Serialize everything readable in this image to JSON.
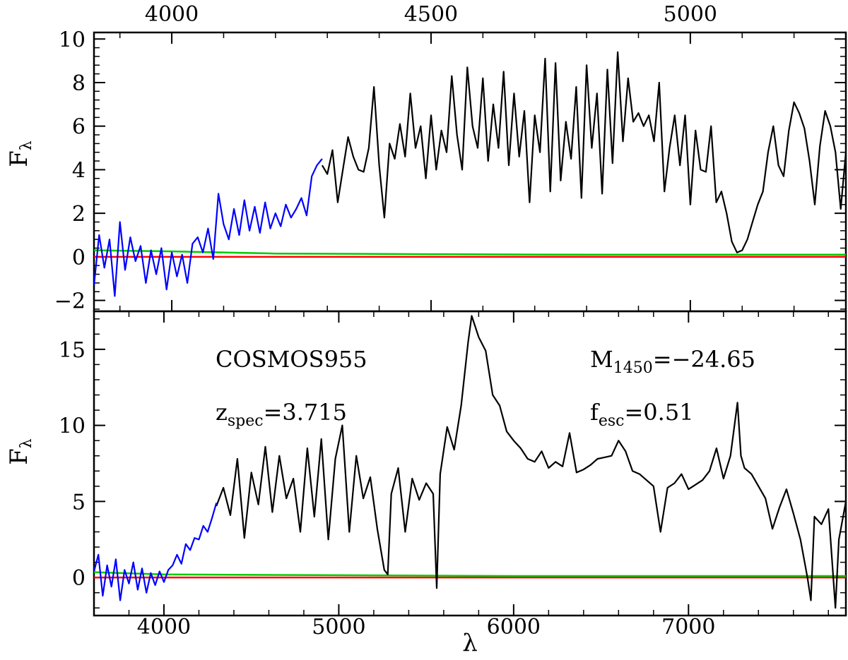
{
  "chart_data": [
    {
      "type": "line",
      "panel": "top",
      "ylabel": "F",
      "ylabel_sub": "λ",
      "xlim": [
        3850,
        5300
      ],
      "ylim": [
        -2.5,
        10.3
      ],
      "x_top_ticks": [
        4000,
        4500,
        5000
      ],
      "y_ticks": [
        -2,
        0,
        2,
        4,
        6,
        8,
        10
      ],
      "y_tick_labels": [
        "−2",
        "0",
        "2",
        "4",
        "6",
        "8",
        "10"
      ],
      "colors": {
        "observed_blueward": "#0000ff",
        "observed": "#000000",
        "error": "#00cc00",
        "zero": "#ff0000"
      },
      "series": [
        {
          "color": "blue",
          "x": [
            3850,
            3860,
            3870,
            3880,
            3890,
            3900,
            3910,
            3920,
            3930,
            3940,
            3950,
            3960,
            3970,
            3980,
            3990,
            4000,
            4010,
            4020,
            4030,
            4040,
            4050,
            4060,
            4070,
            4080,
            4090,
            4100,
            4110,
            4120,
            4130,
            4140,
            4150,
            4160,
            4170,
            4180,
            4190,
            4200,
            4210,
            4220,
            4230,
            4240,
            4250,
            4260,
            4270,
            4280,
            4290
          ],
          "y": [
            -1.3,
            1.0,
            -0.5,
            0.8,
            -1.8,
            1.6,
            -0.6,
            0.9,
            -0.2,
            0.5,
            -1.2,
            0.3,
            -0.8,
            0.4,
            -1.5,
            0.2,
            -0.9,
            0.1,
            -1.2,
            0.6,
            0.9,
            0.2,
            1.3,
            -0.1,
            2.9,
            1.5,
            0.8,
            2.2,
            1.0,
            2.6,
            1.2,
            2.3,
            1.1,
            2.5,
            1.3,
            2.0,
            1.4,
            2.4,
            1.8,
            2.2,
            2.7,
            1.9,
            3.7,
            4.2,
            4.5
          ]
        },
        {
          "color": "black",
          "x": [
            4290,
            4300,
            4310,
            4320,
            4330,
            4340,
            4350,
            4360,
            4370,
            4380,
            4390,
            4400,
            4410,
            4420,
            4430,
            4440,
            4450,
            4460,
            4470,
            4480,
            4490,
            4500,
            4510,
            4520,
            4530,
            4540,
            4550,
            4560,
            4570,
            4580,
            4590,
            4600,
            4610,
            4620,
            4630,
            4640,
            4650,
            4660,
            4670,
            4680,
            4690,
            4700,
            4710,
            4720,
            4730,
            4740,
            4750,
            4760,
            4770,
            4780,
            4790,
            4800,
            4810,
            4820,
            4830,
            4840,
            4850,
            4860,
            4870,
            4880,
            4890,
            4900,
            4910,
            4920,
            4930,
            4940,
            4950,
            4960,
            4970,
            4980,
            4990,
            5000,
            5010,
            5020,
            5030,
            5040,
            5050,
            5060,
            5070,
            5080,
            5090,
            5100,
            5110,
            5120,
            5130,
            5140,
            5150,
            5160,
            5170,
            5180,
            5190,
            5200,
            5210,
            5220,
            5230,
            5240,
            5250,
            5260,
            5270,
            5280,
            5290,
            5300
          ],
          "y": [
            4.2,
            3.8,
            4.9,
            2.5,
            4.0,
            5.5,
            4.6,
            4.0,
            3.9,
            5.0,
            7.8,
            4.2,
            1.8,
            5.2,
            4.5,
            6.1,
            4.6,
            7.5,
            5.0,
            6.0,
            3.6,
            6.5,
            4.0,
            5.8,
            4.8,
            8.3,
            5.6,
            4.0,
            8.7,
            6.0,
            5.0,
            8.2,
            4.4,
            7.0,
            5.0,
            8.5,
            4.2,
            7.5,
            4.6,
            6.7,
            2.5,
            6.5,
            4.8,
            9.1,
            3.0,
            8.9,
            3.5,
            6.2,
            4.5,
            7.8,
            2.7,
            8.8,
            5.0,
            7.5,
            2.9,
            8.6,
            4.3,
            9.4,
            5.3,
            8.2,
            6.2,
            6.6,
            6.0,
            6.5,
            5.3,
            8.0,
            3.0,
            5.0,
            6.5,
            4.2,
            6.5,
            2.4,
            5.8,
            4.0,
            3.9,
            6.0,
            2.5,
            3.0,
            2.0,
            0.7,
            0.2,
            0.3,
            0.8,
            1.6,
            2.4,
            3.0,
            4.8,
            6.0,
            4.2,
            3.7,
            5.8,
            7.1,
            6.6,
            5.9,
            4.4,
            2.4,
            5.1,
            6.7,
            6.0,
            4.8,
            2.2,
            4.8
          ]
        },
        {
          "color": "green",
          "x": [
            3850,
            4000,
            4200,
            4500,
            4800,
            5000,
            5300
          ],
          "y": [
            0.3,
            0.25,
            0.15,
            0.12,
            0.1,
            0.1,
            0.1
          ]
        },
        {
          "color": "red",
          "x": [
            3850,
            5300
          ],
          "y": [
            0,
            0
          ]
        }
      ]
    },
    {
      "type": "line",
      "panel": "bottom",
      "xlabel": "λ",
      "ylabel": "F",
      "ylabel_sub": "λ",
      "xlim": [
        3600,
        7900
      ],
      "ylim": [
        -2.5,
        17.5
      ],
      "x_ticks": [
        4000,
        5000,
        6000,
        7000
      ],
      "y_ticks": [
        0,
        5,
        10,
        15
      ],
      "colors": {
        "observed_blueward": "#0000ff",
        "observed": "#000000",
        "error": "#00cc00",
        "zero": "#ff0000"
      },
      "series": [
        {
          "color": "blue",
          "x": [
            3600,
            3625,
            3650,
            3675,
            3700,
            3725,
            3750,
            3775,
            3800,
            3825,
            3850,
            3875,
            3900,
            3925,
            3950,
            3975,
            4000,
            4025,
            4050,
            4075,
            4100,
            4125,
            4150,
            4175,
            4200,
            4225,
            4250,
            4275,
            4300
          ],
          "y": [
            0.4,
            1.5,
            -1.2,
            0.8,
            -0.6,
            1.2,
            -1.5,
            0.5,
            -0.4,
            1.0,
            -0.8,
            0.6,
            -1.0,
            0.3,
            -0.5,
            0.4,
            -0.3,
            0.5,
            0.8,
            1.5,
            0.9,
            2.2,
            1.8,
            2.6,
            2.5,
            3.4,
            3.0,
            3.9,
            4.9
          ]
        },
        {
          "color": "black",
          "x": [
            4300,
            4340,
            4380,
            4420,
            4460,
            4500,
            4540,
            4580,
            4620,
            4660,
            4700,
            4740,
            4780,
            4820,
            4860,
            4900,
            4940,
            4980,
            5020,
            5060,
            5100,
            5140,
            5180,
            5220,
            5260,
            5280,
            5300,
            5340,
            5380,
            5420,
            5460,
            5500,
            5540,
            5560,
            5580,
            5620,
            5660,
            5700,
            5740,
            5760,
            5800,
            5840,
            5880,
            5920,
            5960,
            6000,
            6040,
            6080,
            6120,
            6160,
            6200,
            6240,
            6280,
            6320,
            6360,
            6400,
            6440,
            6480,
            6520,
            6560,
            6600,
            6640,
            6680,
            6720,
            6760,
            6800,
            6840,
            6880,
            6920,
            6960,
            7000,
            7040,
            7080,
            7120,
            7160,
            7200,
            7240,
            7280,
            7300,
            7320,
            7360,
            7400,
            7440,
            7480,
            7520,
            7560,
            7600,
            7640,
            7680,
            7700,
            7720,
            7760,
            7800,
            7840,
            7860,
            7900
          ],
          "y": [
            4.7,
            5.9,
            4.1,
            7.8,
            2.6,
            6.9,
            4.8,
            8.6,
            4.3,
            8.0,
            5.2,
            6.5,
            3.0,
            8.5,
            4.0,
            9.1,
            2.5,
            7.8,
            10.0,
            3.0,
            8.0,
            5.2,
            6.6,
            3.2,
            0.5,
            0.2,
            5.5,
            7.2,
            3.0,
            6.5,
            5.1,
            6.2,
            5.5,
            -0.7,
            6.8,
            9.9,
            8.4,
            11.3,
            15.5,
            17.2,
            15.8,
            14.9,
            12.0,
            11.3,
            9.6,
            9.0,
            8.5,
            7.8,
            7.6,
            8.3,
            7.2,
            7.6,
            7.3,
            9.5,
            6.9,
            7.1,
            7.4,
            7.8,
            7.9,
            8.0,
            9.0,
            8.3,
            7.0,
            6.8,
            6.4,
            6.0,
            3.0,
            5.9,
            6.2,
            6.8,
            5.8,
            6.1,
            6.4,
            7.0,
            8.5,
            6.5,
            8.0,
            11.5,
            8.0,
            7.2,
            6.8,
            6.0,
            5.2,
            3.2,
            4.6,
            5.8,
            4.2,
            2.5,
            0.0,
            -1.5,
            4.0,
            3.5,
            4.5,
            -2.0,
            2.5,
            5.0
          ]
        },
        {
          "color": "green",
          "x": [
            3600,
            4000,
            5000,
            6000,
            7000,
            7900
          ],
          "y": [
            0.35,
            0.2,
            0.15,
            0.1,
            0.1,
            0.1
          ]
        },
        {
          "color": "red",
          "x": [
            3600,
            7900
          ],
          "y": [
            0,
            0
          ]
        }
      ],
      "annotations": {
        "name": "COSMOS955",
        "z_lead": "z",
        "z_sub": "spec",
        "z_val": "=3.715",
        "m_lead": "M",
        "m_sub": "1450",
        "m_val": "=−24.65",
        "f_lead": "f",
        "f_sub": "esc",
        "f_val": "=0.51"
      }
    }
  ]
}
